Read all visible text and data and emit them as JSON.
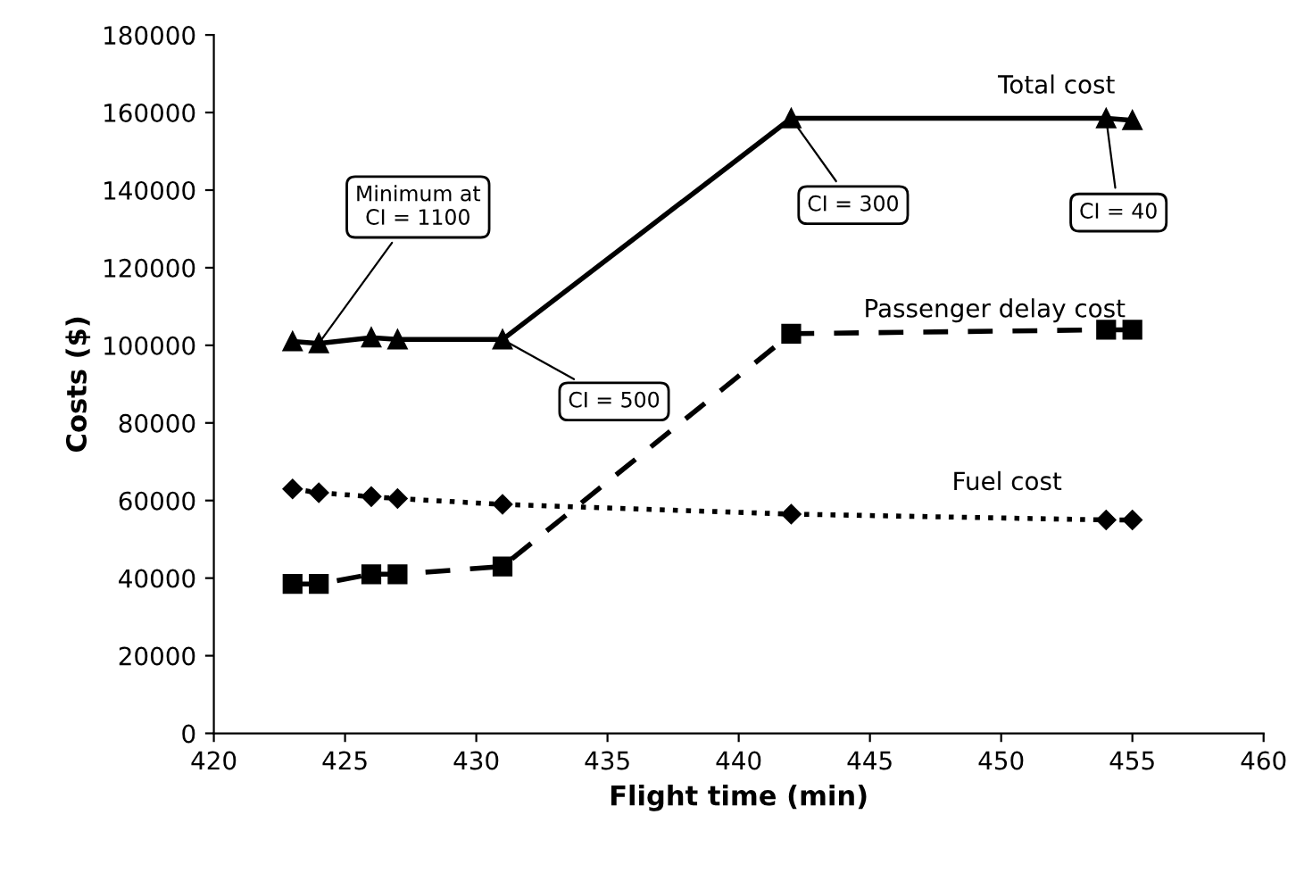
{
  "chart_data": {
    "type": "line",
    "xlabel": "Flight time (min)",
    "ylabel": "Costs ($)",
    "x": [
      423,
      424,
      426,
      427,
      431,
      442,
      454,
      455
    ],
    "series": [
      {
        "name": "Total cost",
        "color": "#000000",
        "marker": "triangle",
        "line_style": "solid",
        "values": [
          101000,
          100500,
          102000,
          101500,
          101500,
          158500,
          158500,
          158000
        ]
      },
      {
        "name": "Passenger delay cost",
        "color": "#000000",
        "marker": "square",
        "line_style": "dashed",
        "values": [
          38500,
          38500,
          41000,
          41000,
          43000,
          103000,
          104000,
          104000
        ]
      },
      {
        "name": "Fuel cost",
        "color": "#000000",
        "marker": "diamond",
        "line_style": "dotted",
        "values": [
          63000,
          62000,
          61000,
          60500,
          59000,
          56500,
          55000,
          55000
        ]
      }
    ],
    "annotations": [
      {
        "text": "Minimum at\nCI = 1100",
        "x": 424,
        "y": 100500
      },
      {
        "text": "CI = 500",
        "x": 431,
        "y": 101500
      },
      {
        "text": "CI = 300",
        "x": 442,
        "y": 158500
      },
      {
        "text": "CI = 40",
        "x": 454,
        "y": 158500
      }
    ],
    "xlim": [
      420,
      460
    ],
    "xticks": [
      420,
      425,
      430,
      435,
      440,
      445,
      450,
      455,
      460
    ],
    "ylim": [
      0,
      180000
    ],
    "yticks": [
      0,
      20000,
      40000,
      60000,
      80000,
      100000,
      120000,
      140000,
      160000,
      180000
    ],
    "grid": false,
    "legend": false
  }
}
